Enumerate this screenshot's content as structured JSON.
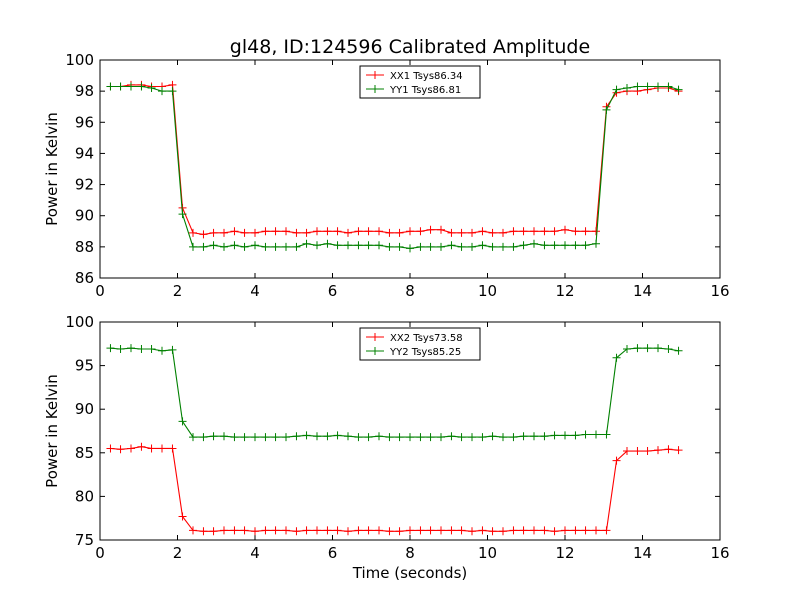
{
  "figure": {
    "title": "gl48, ID:124596 Calibrated Amplitude",
    "xlabel": "Time (seconds)"
  },
  "chart_data": [
    {
      "type": "line",
      "title": "gl48, ID:124596 Calibrated Amplitude",
      "xlabel": "",
      "ylabel": "Power in Kelvin",
      "xlim": [
        0,
        16
      ],
      "ylim": [
        86,
        100
      ],
      "xticks": [
        "0",
        "2",
        "4",
        "6",
        "8",
        "10",
        "12",
        "14",
        "16"
      ],
      "yticks": [
        "86",
        "88",
        "90",
        "92",
        "94",
        "96",
        "98",
        "100"
      ],
      "grid": false,
      "legend_position": "top-center",
      "x": [
        0.27,
        0.53,
        0.8,
        1.07,
        1.33,
        1.6,
        1.87,
        2.13,
        2.4,
        2.67,
        2.93,
        3.2,
        3.47,
        3.73,
        4.0,
        4.27,
        4.53,
        4.8,
        5.07,
        5.33,
        5.6,
        5.87,
        6.13,
        6.4,
        6.67,
        6.93,
        7.2,
        7.47,
        7.73,
        8.0,
        8.27,
        8.53,
        8.8,
        9.07,
        9.33,
        9.6,
        9.87,
        10.13,
        10.4,
        10.67,
        10.93,
        11.2,
        11.47,
        11.73,
        12.0,
        12.27,
        12.53,
        12.8,
        13.07,
        13.33,
        13.6,
        13.87,
        14.13,
        14.4,
        14.67,
        14.93
      ],
      "series": [
        {
          "name": "XX1 Tsys86.34",
          "color": "#ff0000",
          "values": [
            98.3,
            98.3,
            98.4,
            98.4,
            98.3,
            98.3,
            98.4,
            90.5,
            88.9,
            88.8,
            88.9,
            88.9,
            89.0,
            88.9,
            88.9,
            89.0,
            89.0,
            89.0,
            88.9,
            88.9,
            89.0,
            89.0,
            89.0,
            88.9,
            89.0,
            89.0,
            89.0,
            88.9,
            88.9,
            89.0,
            89.0,
            89.1,
            89.1,
            88.9,
            88.9,
            88.9,
            89.0,
            88.9,
            88.9,
            89.0,
            89.0,
            89.0,
            89.0,
            89.0,
            89.1,
            89.0,
            89.0,
            89.0,
            97.0,
            97.9,
            98.0,
            98.0,
            98.1,
            98.2,
            98.2,
            98.0
          ]
        },
        {
          "name": "YY1 Tsys86.81",
          "color": "#008000",
          "values": [
            98.3,
            98.3,
            98.3,
            98.3,
            98.2,
            98.0,
            98.0,
            90.1,
            88.0,
            88.0,
            88.1,
            88.0,
            88.1,
            88.0,
            88.1,
            88.0,
            88.0,
            88.0,
            88.0,
            88.2,
            88.1,
            88.2,
            88.1,
            88.1,
            88.1,
            88.1,
            88.1,
            88.0,
            88.0,
            87.9,
            88.0,
            88.0,
            88.0,
            88.1,
            88.0,
            88.0,
            88.1,
            88.0,
            88.0,
            88.0,
            88.1,
            88.2,
            88.1,
            88.1,
            88.1,
            88.1,
            88.1,
            88.2,
            96.8,
            98.1,
            98.2,
            98.3,
            98.3,
            98.3,
            98.3,
            98.1
          ]
        }
      ]
    },
    {
      "type": "line",
      "title": "",
      "xlabel": "Time (seconds)",
      "ylabel": "Power in Kelvin",
      "xlim": [
        0,
        16
      ],
      "ylim": [
        75,
        100
      ],
      "xticks": [
        "0",
        "2",
        "4",
        "6",
        "8",
        "10",
        "12",
        "14",
        "16"
      ],
      "yticks": [
        "75",
        "80",
        "85",
        "90",
        "95",
        "100"
      ],
      "grid": false,
      "legend_position": "top-center",
      "x": [
        0.27,
        0.53,
        0.8,
        1.07,
        1.33,
        1.6,
        1.87,
        2.13,
        2.4,
        2.67,
        2.93,
        3.2,
        3.47,
        3.73,
        4.0,
        4.27,
        4.53,
        4.8,
        5.07,
        5.33,
        5.6,
        5.87,
        6.13,
        6.4,
        6.67,
        6.93,
        7.2,
        7.47,
        7.73,
        8.0,
        8.27,
        8.53,
        8.8,
        9.07,
        9.33,
        9.6,
        9.87,
        10.13,
        10.4,
        10.67,
        10.93,
        11.2,
        11.47,
        11.73,
        12.0,
        12.27,
        12.53,
        12.8,
        13.07,
        13.33,
        13.6,
        13.87,
        14.13,
        14.4,
        14.67,
        14.93
      ],
      "series": [
        {
          "name": "XX2 Tsys73.58",
          "color": "#ff0000",
          "values": [
            85.5,
            85.4,
            85.5,
            85.7,
            85.5,
            85.5,
            85.5,
            77.7,
            76.1,
            76.0,
            76.0,
            76.1,
            76.1,
            76.1,
            76.0,
            76.1,
            76.1,
            76.1,
            76.0,
            76.1,
            76.1,
            76.1,
            76.1,
            76.0,
            76.1,
            76.1,
            76.1,
            76.0,
            76.0,
            76.1,
            76.1,
            76.1,
            76.1,
            76.1,
            76.1,
            76.0,
            76.1,
            76.0,
            76.0,
            76.1,
            76.1,
            76.1,
            76.1,
            76.0,
            76.1,
            76.1,
            76.1,
            76.1,
            76.1,
            84.1,
            85.2,
            85.2,
            85.2,
            85.3,
            85.4,
            85.3
          ]
        },
        {
          "name": "YY2 Tsys85.25",
          "color": "#008000",
          "values": [
            97.0,
            96.9,
            97.0,
            96.9,
            96.9,
            96.7,
            96.8,
            88.6,
            86.8,
            86.8,
            86.9,
            86.9,
            86.8,
            86.8,
            86.8,
            86.8,
            86.8,
            86.8,
            86.9,
            87.0,
            86.9,
            86.9,
            87.0,
            86.9,
            86.8,
            86.8,
            86.9,
            86.8,
            86.8,
            86.8,
            86.8,
            86.8,
            86.8,
            86.9,
            86.8,
            86.8,
            86.8,
            86.9,
            86.8,
            86.8,
            86.9,
            86.9,
            86.9,
            87.0,
            87.0,
            87.0,
            87.1,
            87.1,
            87.1,
            95.9,
            96.9,
            97.0,
            97.0,
            97.0,
            96.9,
            96.7
          ]
        }
      ]
    }
  ]
}
